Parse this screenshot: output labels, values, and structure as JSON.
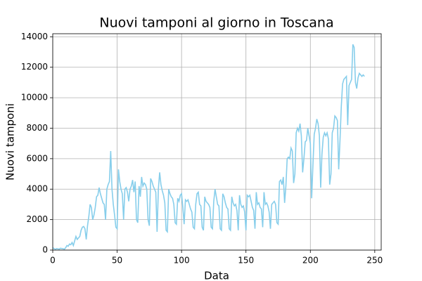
{
  "chart_data": {
    "type": "line",
    "title": "Nuovi tamponi al giorno in Toscana",
    "x_label": "Data",
    "y_label": "Nuovi tamponi",
    "x": [
      0,
      1,
      2,
      3,
      4,
      5,
      6,
      7,
      8,
      9,
      10,
      11,
      12,
      13,
      14,
      15,
      16,
      17,
      18,
      19,
      20,
      21,
      22,
      23,
      24,
      25,
      26,
      27,
      28,
      29,
      30,
      31,
      32,
      33,
      34,
      35,
      36,
      37,
      38,
      39,
      40,
      41,
      42,
      43,
      44,
      45,
      46,
      47,
      48,
      49,
      50,
      51,
      52,
      53,
      54,
      55,
      56,
      57,
      58,
      59,
      60,
      61,
      62,
      63,
      64,
      65,
      66,
      67,
      68,
      69,
      70,
      71,
      72,
      73,
      74,
      75,
      76,
      77,
      78,
      79,
      80,
      81,
      82,
      83,
      84,
      85,
      86,
      87,
      88,
      89,
      90,
      91,
      92,
      93,
      94,
      95,
      96,
      97,
      98,
      99,
      100,
      101,
      102,
      103,
      104,
      105,
      106,
      107,
      108,
      109,
      110,
      111,
      112,
      113,
      114,
      115,
      116,
      117,
      118,
      119,
      120,
      121,
      122,
      123,
      124,
      125,
      126,
      127,
      128,
      129,
      130,
      131,
      132,
      133,
      134,
      135,
      136,
      137,
      138,
      139,
      140,
      141,
      142,
      143,
      144,
      145,
      146,
      147,
      148,
      149,
      150,
      151,
      152,
      153,
      154,
      155,
      156,
      157,
      158,
      159,
      160,
      161,
      162,
      163,
      164,
      165,
      166,
      167,
      168,
      169,
      170,
      171,
      172,
      173,
      174,
      175,
      176,
      177,
      178,
      179,
      180,
      181,
      182,
      183,
      184,
      185,
      186,
      187,
      188,
      189,
      190,
      191,
      192,
      193,
      194,
      195,
      196,
      197,
      198,
      199,
      200,
      201,
      202,
      203,
      204,
      205,
      206,
      207,
      208,
      209,
      210,
      211,
      212,
      213,
      214,
      215,
      216,
      217,
      218,
      219,
      220,
      221,
      222,
      223,
      224,
      225,
      226,
      227,
      228,
      229,
      230,
      231,
      232,
      233,
      234,
      235,
      236,
      237,
      238,
      239,
      240,
      241,
      242
    ],
    "series": [
      {
        "name": "Nuovi tamponi",
        "color": "#87ceeb",
        "values": [
          150,
          100,
          50,
          100,
          80,
          60,
          120,
          100,
          90,
          60,
          150,
          300,
          250,
          400,
          350,
          500,
          300,
          600,
          900,
          700,
          800,
          900,
          1300,
          1500,
          1550,
          1400,
          700,
          1600,
          2200,
          3000,
          2800,
          2000,
          2300,
          2800,
          3500,
          3600,
          4100,
          3700,
          3400,
          3100,
          3000,
          2000,
          4000,
          4300,
          4500,
          6500,
          4000,
          3000,
          2300,
          1500,
          1400,
          5300,
          4500,
          4000,
          3700,
          2000,
          4000,
          4100,
          3800,
          3200,
          4000,
          4200,
          4600,
          3800,
          4500,
          2000,
          1800,
          4200,
          3500,
          4800,
          4200,
          4400,
          4300,
          4000,
          2000,
          1600,
          4700,
          4500,
          4200,
          4000,
          3800,
          1200,
          4000,
          5100,
          4300,
          3900,
          3600,
          3100,
          1300,
          1200,
          4000,
          3700,
          3500,
          3400,
          3000,
          1800,
          1700,
          3400,
          3200,
          3600,
          3700,
          2800,
          1700,
          3300,
          3200,
          3300,
          3000,
          2700,
          2500,
          1500,
          1400,
          3000,
          3700,
          3800,
          3000,
          2900,
          1500,
          1300,
          3500,
          3200,
          3100,
          3000,
          2800,
          1500,
          1400,
          3200,
          4000,
          3500,
          3000,
          2900,
          1400,
          1300,
          3700,
          3500,
          3100,
          2800,
          2700,
          1400,
          1300,
          3500,
          3100,
          2900,
          3000,
          2600,
          1300,
          3600,
          3000,
          2800,
          2900,
          2500,
          1300,
          3600,
          3500,
          3600,
          3200,
          2800,
          2600,
          1400,
          3800,
          3000,
          3100,
          2800,
          2700,
          1500,
          3800,
          3000,
          3100,
          2900,
          2500,
          1400,
          3000,
          3100,
          3200,
          3000,
          1800,
          1700,
          4500,
          4600,
          4300,
          4800,
          3100,
          4200,
          6000,
          6100,
          6000,
          6700,
          6500,
          4400,
          5000,
          7700,
          8000,
          7800,
          8300,
          7500,
          5100,
          6000,
          7100,
          7200,
          8000,
          7500,
          7000,
          3400,
          5600,
          7600,
          8000,
          8600,
          8300,
          7500,
          4100,
          6300,
          7400,
          7700,
          7500,
          7700,
          7300,
          4300,
          5000,
          7700,
          8000,
          8800,
          8700,
          8500,
          5300,
          7200,
          9400,
          10900,
          11200,
          11300,
          11400,
          8200,
          10800,
          11000,
          11200,
          13500,
          13300,
          11000,
          10600,
          11300,
          11600,
          11500,
          11400,
          11500,
          11400
        ]
      }
    ],
    "xlim": [
      0,
      255
    ],
    "ylim": [
      0,
      14200
    ],
    "xticks": [
      0,
      50,
      100,
      150,
      200,
      250
    ],
    "yticks": [
      0,
      2000,
      4000,
      6000,
      8000,
      10000,
      12000,
      14000
    ],
    "grid": true
  }
}
